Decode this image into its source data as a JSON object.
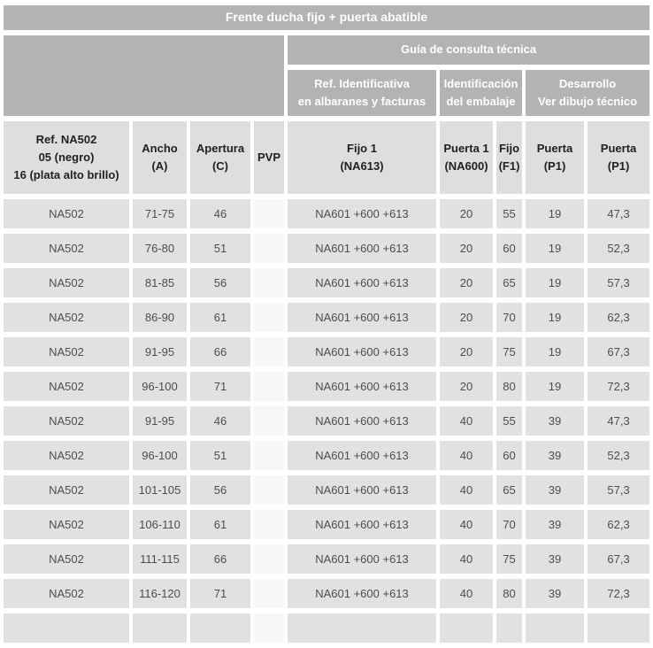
{
  "banner": {
    "title": "Frente ducha fijo + puerta abatible"
  },
  "technical_guide": {
    "title": "Guía de consulta técnica",
    "groups": [
      {
        "label": "Ref. Identificativa\nen albaranes y facturas"
      },
      {
        "label": "Identificación\ndel embalaje"
      },
      {
        "label": "Desarrollo\nVer dibujo técnico"
      }
    ]
  },
  "table": {
    "column_headers": [
      "Ref. NA502\n05 (negro)\n16 (plata alto brillo)",
      "Ancho\n(A)",
      "Apertura\n(C)",
      "PVP",
      "Fijo 1\n(NA613)",
      "Puerta 1\n(NA600)",
      "Fijo\n(F1)",
      "Puerta\n(P1)",
      "Puerta\n(P1)"
    ],
    "rows": [
      [
        "NA502",
        "71-75",
        "46",
        "",
        "NA601 +600 +613",
        "20",
        "55",
        "19",
        "47,3"
      ],
      [
        "NA502",
        "76-80",
        "51",
        "",
        "NA601 +600 +613",
        "20",
        "60",
        "19",
        "52,3"
      ],
      [
        "NA502",
        "81-85",
        "56",
        "",
        "NA601 +600 +613",
        "20",
        "65",
        "19",
        "57,3"
      ],
      [
        "NA502",
        "86-90",
        "61",
        "",
        "NA601 +600 +613",
        "20",
        "70",
        "19",
        "62,3"
      ],
      [
        "NA502",
        "91-95",
        "66",
        "",
        "NA601 +600 +613",
        "20",
        "75",
        "19",
        "67,3"
      ],
      [
        "NA502",
        "96-100",
        "71",
        "",
        "NA601 +600 +613",
        "20",
        "80",
        "19",
        "72,3"
      ],
      [
        "NA502",
        "91-95",
        "46",
        "",
        "NA601 +600 +613",
        "40",
        "55",
        "39",
        "47,3"
      ],
      [
        "NA502",
        "96-100",
        "51",
        "",
        "NA601 +600 +613",
        "40",
        "60",
        "39",
        "52,3"
      ],
      [
        "NA502",
        "101-105",
        "56",
        "",
        "NA601 +600 +613",
        "40",
        "65",
        "39",
        "57,3"
      ],
      [
        "NA502",
        "106-110",
        "61",
        "",
        "NA601 +600 +613",
        "40",
        "70",
        "39",
        "62,3"
      ],
      [
        "NA502",
        "111-115",
        "66",
        "",
        "NA601 +600 +613",
        "40",
        "75",
        "39",
        "67,3"
      ],
      [
        "NA502",
        "116-120",
        "71",
        "",
        "NA601 +600 +613",
        "40",
        "80",
        "39",
        "72,3"
      ]
    ]
  },
  "colors": {
    "band_gray": "#b3b3b3",
    "column_header_bg": "#dedede",
    "cell_bg": "#e1e1e1",
    "pvp_cell_bg": "#f7f7f7",
    "band_text": "#ffffff",
    "column_header_text": "#212121",
    "cell_text": "#4d4d4d"
  }
}
